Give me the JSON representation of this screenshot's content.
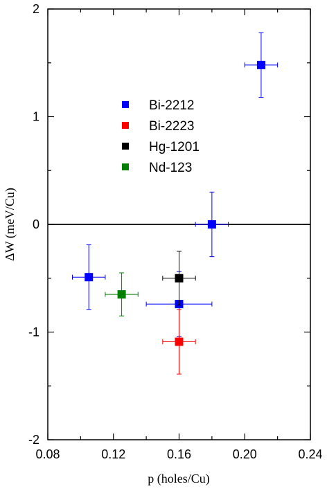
{
  "chart_data": {
    "type": "scatter",
    "xlabel": "p (holes/Cu)",
    "ylabel": "ΔW (meV/Cu)",
    "xlim": [
      0.08,
      0.24
    ],
    "ylim": [
      -2,
      2
    ],
    "x_ticks": [
      "0.08",
      "0.12",
      "0.16",
      "0.20",
      "0.24"
    ],
    "y_ticks": [
      "2",
      "1",
      "0",
      "-1",
      "-2"
    ],
    "x_tick_values": [
      0.08,
      0.12,
      0.16,
      0.2,
      0.24
    ],
    "y_tick_values": [
      2,
      1,
      0,
      -1,
      -2
    ],
    "zero_line": 0,
    "grid": false,
    "legend_position": "upper-left",
    "series": [
      {
        "name": "Bi-2212",
        "color": "#0000ff",
        "points": [
          {
            "x": 0.21,
            "y": 1.48,
            "xerr": 0.01,
            "yerr": 0.3
          },
          {
            "x": 0.18,
            "y": 0.0,
            "xerr": 0.01,
            "yerr": 0.3
          },
          {
            "x": 0.105,
            "y": -0.49,
            "xerr": 0.01,
            "yerr": 0.3
          },
          {
            "x": 0.16,
            "y": -0.74,
            "xerr": 0.02,
            "yerr": 0.3
          }
        ]
      },
      {
        "name": "Bi-2223",
        "color": "#ff0000",
        "points": [
          {
            "x": 0.16,
            "y": -1.09,
            "xerr": 0.01,
            "yerr": 0.3
          }
        ]
      },
      {
        "name": "Hg-1201",
        "color": "#000000",
        "points": [
          {
            "x": 0.16,
            "y": -0.5,
            "xerr": 0.01,
            "yerr": 0.25
          }
        ]
      },
      {
        "name": "Nd-123",
        "color": "#008000",
        "points": [
          {
            "x": 0.125,
            "y": -0.65,
            "xerr": 0.01,
            "yerr": 0.2
          }
        ]
      }
    ]
  }
}
